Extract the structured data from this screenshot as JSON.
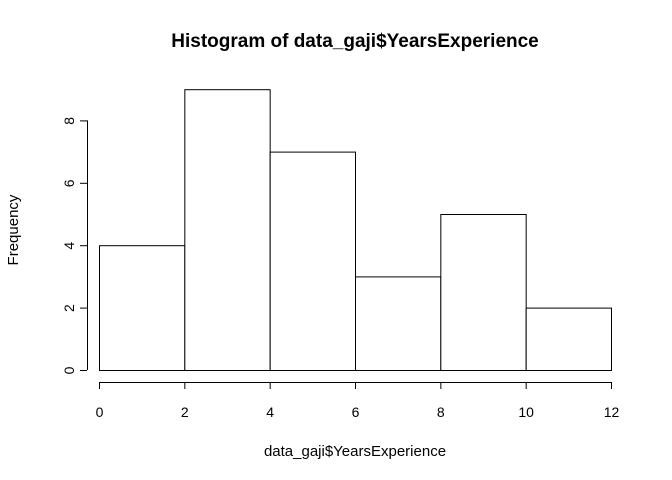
{
  "chart_data": {
    "type": "bar",
    "title": "Histogram of data_gaji$YearsExperience",
    "xlabel": "data_gaji$YearsExperience",
    "ylabel": "Frequency",
    "bins": [
      {
        "from": 0,
        "to": 2,
        "count": 4
      },
      {
        "from": 2,
        "to": 4,
        "count": 9
      },
      {
        "from": 4,
        "to": 6,
        "count": 7
      },
      {
        "from": 6,
        "to": 8,
        "count": 3
      },
      {
        "from": 8,
        "to": 10,
        "count": 5
      },
      {
        "from": 10,
        "to": 12,
        "count": 2
      }
    ],
    "x_ticks": [
      "0",
      "2",
      "4",
      "6",
      "8",
      "10",
      "12"
    ],
    "y_ticks": [
      "0",
      "2",
      "4",
      "6",
      "8"
    ],
    "xlim": [
      0,
      12
    ],
    "ylim": [
      0,
      9
    ],
    "grid": false,
    "colors": {
      "bar_fill": "#ffffff",
      "bar_stroke": "#000000"
    }
  }
}
